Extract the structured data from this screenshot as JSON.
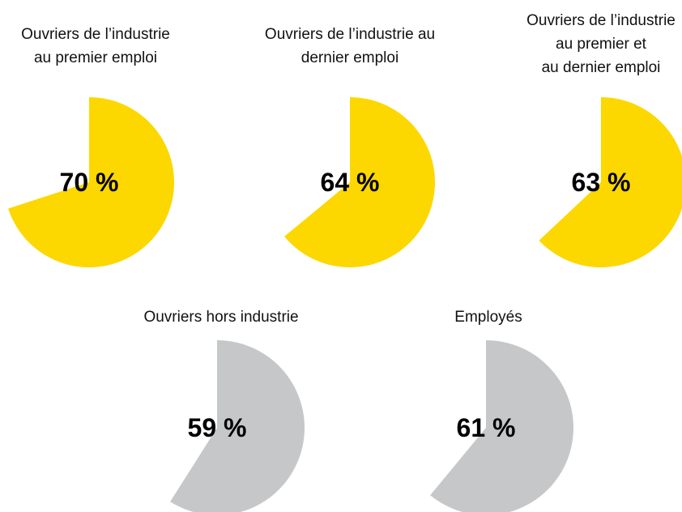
{
  "chart_data": {
    "type": "pie",
    "colors": {
      "highlight": "#fcd700",
      "neutral": "#c6c7c9"
    },
    "pies": [
      {
        "title_lines": [
          "Ouvriers de l’industrie",
          "au premier emploi"
        ],
        "value": 70,
        "label": "70 %",
        "color": "highlight"
      },
      {
        "title_lines": [
          "Ouvriers de l’industrie au",
          "dernier emploi"
        ],
        "value": 64,
        "label": "64 %",
        "color": "highlight"
      },
      {
        "title_lines": [
          "Ouvriers de l’industrie",
          "au premier et",
          "au dernier emploi"
        ],
        "value": 63,
        "label": "63 %",
        "color": "highlight"
      },
      {
        "title_lines": [
          "Ouvriers hors industrie"
        ],
        "value": 59,
        "label": "59 %",
        "color": "neutral"
      },
      {
        "title_lines": [
          "Employés"
        ],
        "value": 61,
        "label": "61 %",
        "color": "neutral"
      }
    ]
  }
}
